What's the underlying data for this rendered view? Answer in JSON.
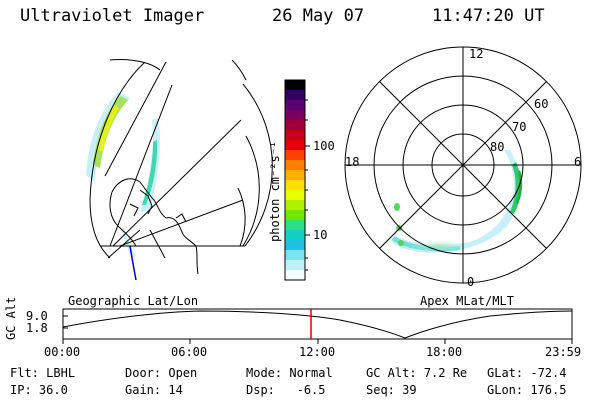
{
  "header": {
    "instrument": "Ultraviolet Imager",
    "date": "26 May 07",
    "time": "11:47:20 UT"
  },
  "colorbar": {
    "label": "photon cm⁻²s⁻¹",
    "ticks": [
      "100",
      "10"
    ],
    "colors": [
      "#000000",
      "#30005a",
      "#5a0070",
      "#7a0060",
      "#a0003a",
      "#c80018",
      "#e80000",
      "#ff4000",
      "#ff8000",
      "#ffb000",
      "#ffe000",
      "#e8ff00",
      "#b0f000",
      "#70e800",
      "#30e080",
      "#10d0c0",
      "#20c0e0",
      "#80e0f0",
      "#c0f0f8",
      "#f4fcff"
    ]
  },
  "geo_panel": {
    "caption": "Geographic Lat/Lon"
  },
  "polar_panel": {
    "caption": "Apex  MLat/MLT",
    "mlt_labels": {
      "top": "12",
      "left": "18",
      "right": "6",
      "bottom": "0"
    },
    "lat_labels": [
      "60",
      "70",
      "80"
    ]
  },
  "altitude_plot": {
    "axis_label": "GC Alt",
    "y_ticks": [
      "9.0",
      "1.8"
    ],
    "x_ticks": [
      "00:00",
      "06:00",
      "12:00",
      "18:00",
      "23:59"
    ],
    "current_time_marker_color": "#e00000"
  },
  "info": {
    "row1": [
      {
        "key": "Flt:",
        "value": "LBHL"
      },
      {
        "key": "Door:",
        "value": "Open"
      },
      {
        "key": "Mode:",
        "value": "Normal"
      },
      {
        "key": "GC Alt:",
        "value": "7.2 Re"
      },
      {
        "key": "GLat:",
        "value": "-72.4"
      }
    ],
    "row2": [
      {
        "key": "IP:",
        "value": "36.0"
      },
      {
        "key": "Gain:",
        "value": "14"
      },
      {
        "key": "Dsp:",
        "value": "  -6.5"
      },
      {
        "key": "Seq:",
        "value": "39"
      },
      {
        "key": "GLon:",
        "value": "176.5"
      }
    ]
  }
}
